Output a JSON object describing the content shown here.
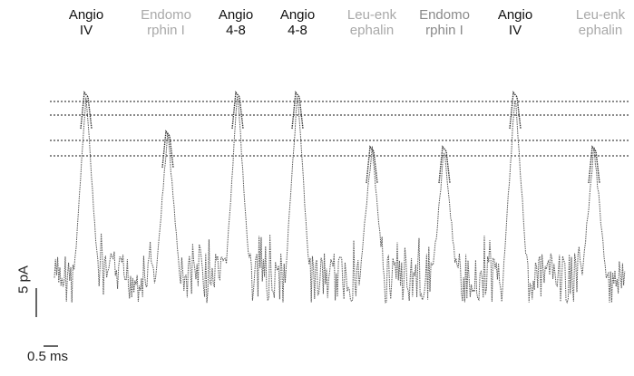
{
  "chart_data": {
    "type": "line",
    "title": "",
    "xlabel": "",
    "ylabel": "",
    "events": [
      {
        "label": "Angio\nIV",
        "tone": "dark",
        "peak_level": 1
      },
      {
        "label": "Endomo\nrphin I",
        "tone": "faint",
        "peak_level": 3
      },
      {
        "label": "Angio\n4-8",
        "tone": "dark",
        "peak_level": 1
      },
      {
        "label": "Angio\n4-8",
        "tone": "dark",
        "peak_level": 1
      },
      {
        "label": "Leu-enk\nephalin",
        "tone": "faint",
        "peak_level": 4
      },
      {
        "label": "Endomo\nrphin I",
        "tone": "mid",
        "peak_level": 4
      },
      {
        "label": "Angio\nIV",
        "tone": "dark",
        "peak_level": 1
      },
      {
        "label": "Leu-enk\nephalin",
        "tone": "faint",
        "peak_level": 4
      }
    ],
    "reference_lines": 5,
    "grid": false,
    "scale_bars": {
      "current": "5 pA",
      "time": "0.5 ms"
    }
  }
}
